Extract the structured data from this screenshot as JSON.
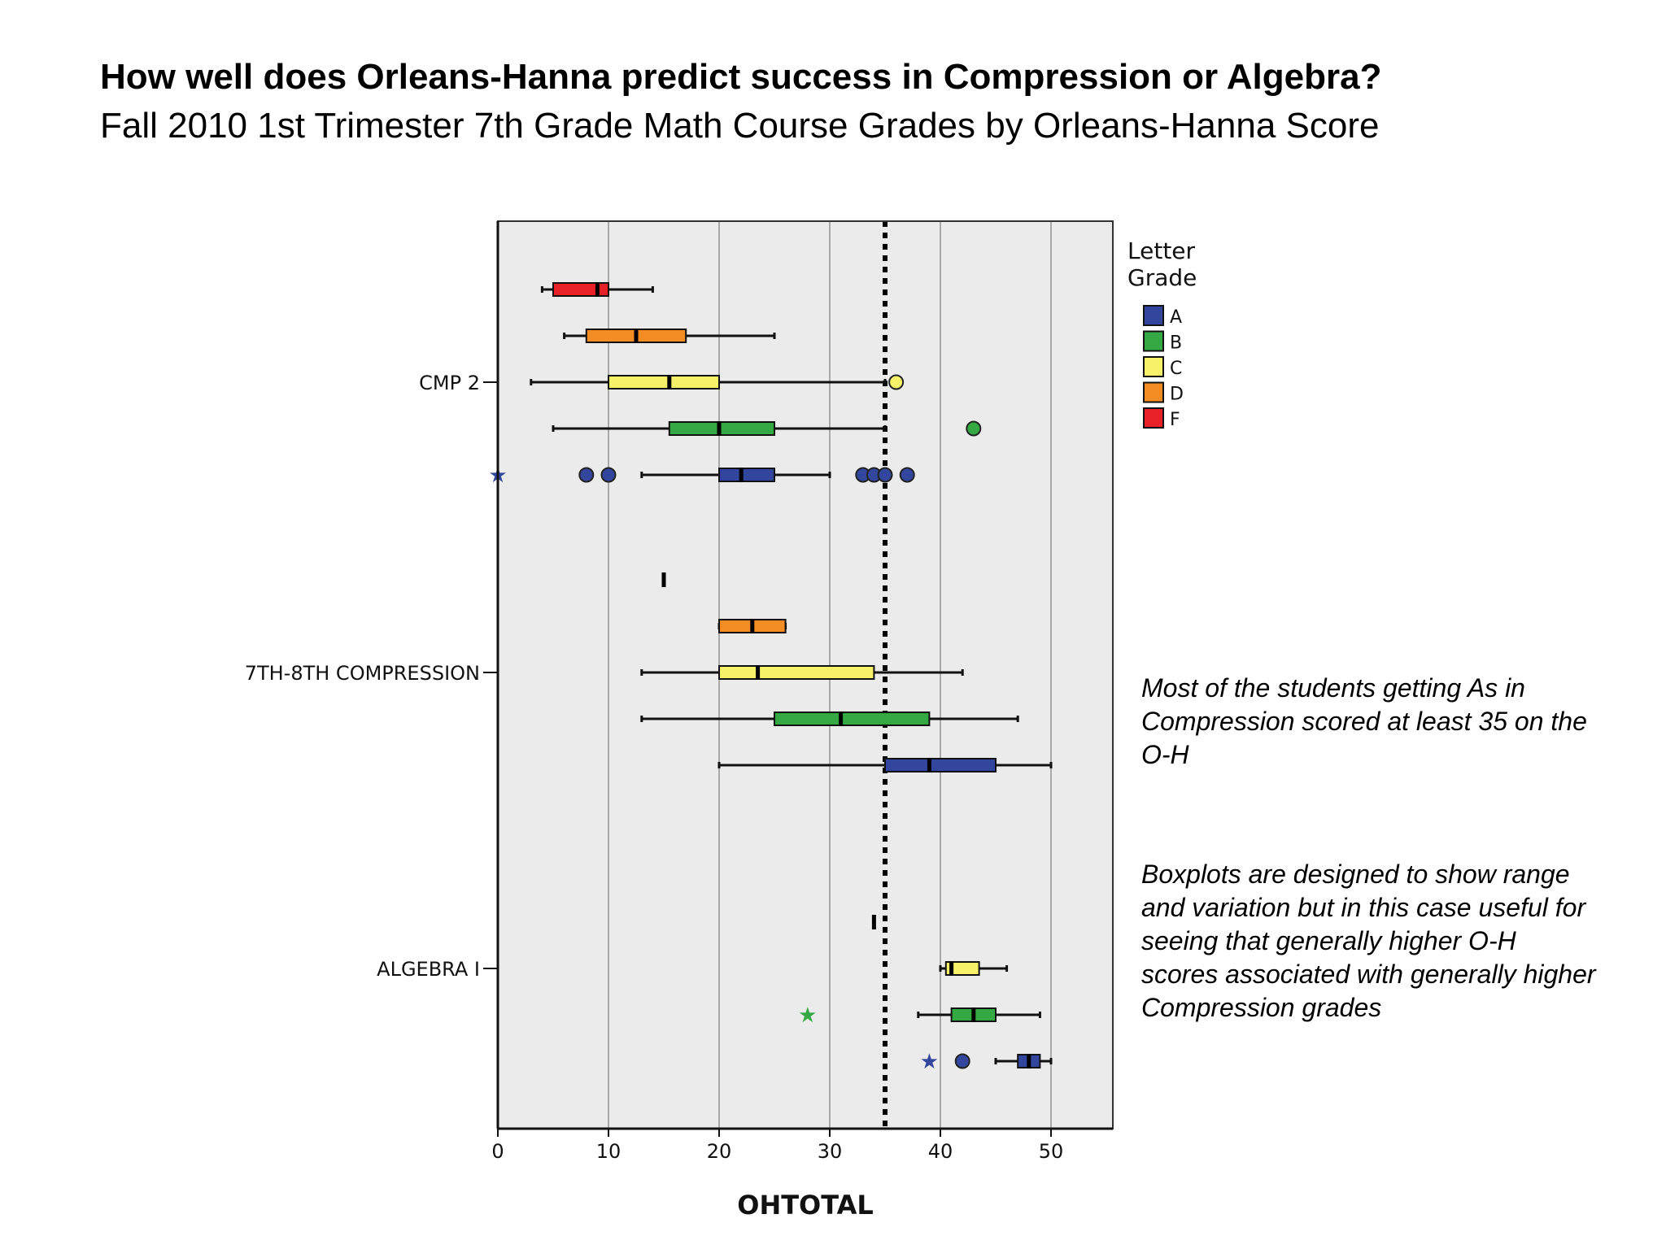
{
  "title": "How well does Orleans-Hanna predict success in Compression or Algebra?",
  "subtitle": "Fall 2010 1st Trimester 7th Grade Math Course Grades by Orleans-Hanna Score",
  "notes": [
    "Most of the students getting As in Compression scored at least 35 on the O-H",
    "Boxplots are designed to show range and variation but in this case useful for seeing that generally higher O-H scores associated with generally higher Compression grades"
  ],
  "chart_data": {
    "type": "boxplot",
    "xlabel": "OHTOTAL",
    "xlim": [
      0,
      55
    ],
    "xticks": [
      "0",
      "10",
      "20",
      "30",
      "40",
      "50"
    ],
    "grid": "vertical",
    "reference_line": 35,
    "legend": {
      "title": "Letter Grade",
      "placement": "right",
      "entries": [
        {
          "label": "A",
          "color": "#33469e"
        },
        {
          "label": "B",
          "color": "#34a843"
        },
        {
          "label": "C",
          "color": "#f5f26a"
        },
        {
          "label": "D",
          "color": "#f28c23"
        },
        {
          "label": "F",
          "color": "#e82028"
        }
      ]
    },
    "groups": [
      {
        "name": "CMP 2",
        "boxes": [
          {
            "grade": "F",
            "min": 4,
            "q1": 5,
            "median": 9,
            "q3": 10,
            "max": 14,
            "outliers": [],
            "extremes": []
          },
          {
            "grade": "D",
            "min": 6,
            "q1": 8,
            "median": 12.5,
            "q3": 17,
            "max": 25,
            "outliers": [],
            "extremes": []
          },
          {
            "grade": "C",
            "min": 3,
            "q1": 10,
            "median": 15.5,
            "q3": 20,
            "max": 35,
            "outliers": [
              36
            ],
            "extremes": []
          },
          {
            "grade": "B",
            "min": 5,
            "q1": 15.5,
            "median": 20,
            "q3": 25,
            "max": 35,
            "outliers": [
              43
            ],
            "extremes": []
          },
          {
            "grade": "A",
            "min": 13,
            "q1": 20,
            "median": 22,
            "q3": 25,
            "max": 30,
            "outliers": [
              8,
              10,
              33,
              34,
              35,
              37
            ],
            "extremes": [
              0
            ]
          }
        ]
      },
      {
        "name": "7TH-8TH COMPRESSION",
        "boxes": [
          {
            "grade": "F",
            "min": 15,
            "q1": 15,
            "median": 15,
            "q3": 15,
            "max": 15,
            "outliers": [],
            "extremes": []
          },
          {
            "grade": "D",
            "min": 20,
            "q1": 20,
            "median": 23,
            "q3": 26,
            "max": 26,
            "outliers": [],
            "extremes": []
          },
          {
            "grade": "C",
            "min": 13,
            "q1": 20,
            "median": 23.5,
            "q3": 34,
            "max": 42,
            "outliers": [],
            "extremes": []
          },
          {
            "grade": "B",
            "min": 13,
            "q1": 25,
            "median": 31,
            "q3": 39,
            "max": 47,
            "outliers": [],
            "extremes": []
          },
          {
            "grade": "A",
            "min": 20,
            "q1": 35,
            "median": 39,
            "q3": 45,
            "max": 50,
            "outliers": [],
            "extremes": []
          }
        ]
      },
      {
        "name": "ALGEBRA I",
        "boxes": [
          {
            "grade": "F",
            "min": null,
            "q1": null,
            "median": null,
            "q3": null,
            "max": null,
            "outliers": [],
            "extremes": []
          },
          {
            "grade": "D",
            "min": 34,
            "q1": 34,
            "median": 34,
            "q3": 34,
            "max": 34,
            "outliers": [],
            "extremes": []
          },
          {
            "grade": "C",
            "min": 40,
            "q1": 40.5,
            "median": 41,
            "q3": 43.5,
            "max": 46,
            "outliers": [],
            "extremes": []
          },
          {
            "grade": "B",
            "min": 38,
            "q1": 41,
            "median": 43,
            "q3": 45,
            "max": 49,
            "outliers": [],
            "extremes": [
              28
            ]
          },
          {
            "grade": "A",
            "min": 45,
            "q1": 47,
            "median": 48,
            "q3": 49,
            "max": 50,
            "outliers": [
              42
            ],
            "extremes": [
              39
            ]
          }
        ]
      }
    ]
  }
}
